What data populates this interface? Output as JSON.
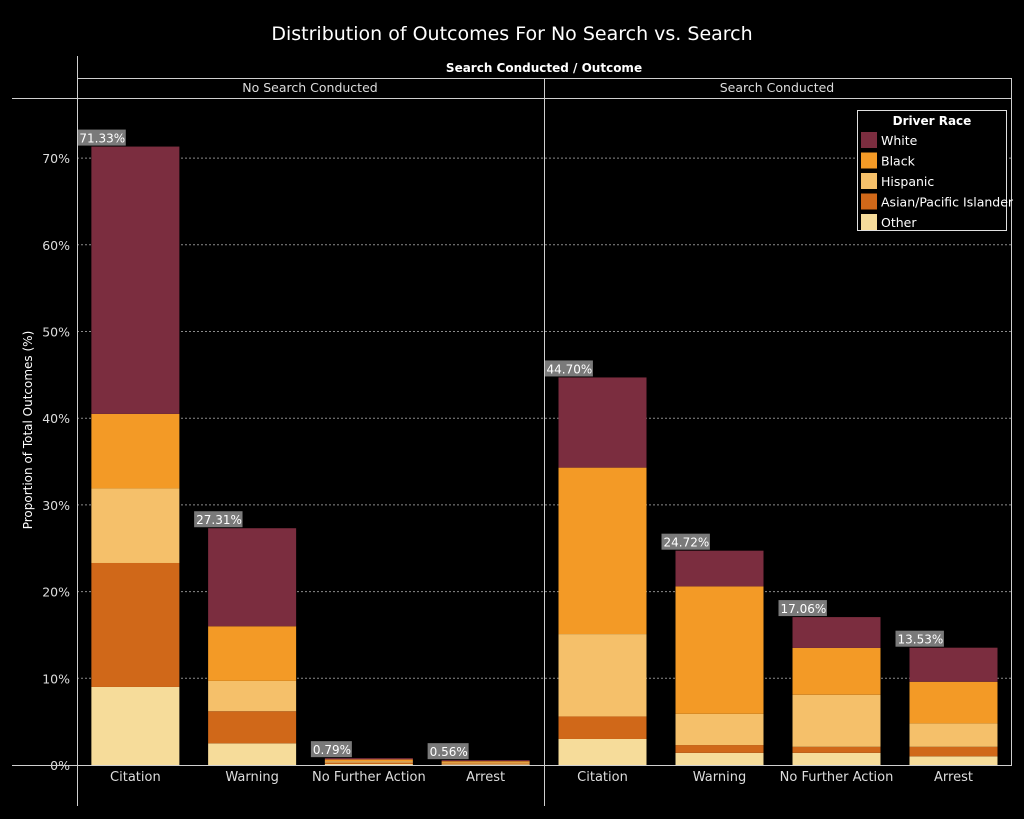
{
  "chart_data": {
    "type": "bar",
    "stacked": true,
    "title": "Distribution of Outcomes For No Search vs. Search",
    "column_header": "Search Conducted  /  Outcome",
    "ylabel": "Proportion of Total  Outcomes  (%)",
    "ylim": [
      0,
      75
    ],
    "yticks": [
      "0%",
      "10%",
      "20%",
      "30%",
      "40%",
      "50%",
      "60%",
      "70%"
    ],
    "ytick_values": [
      0,
      10,
      20,
      30,
      40,
      50,
      60,
      70
    ],
    "grid": true,
    "legend_title": "Driver Race",
    "legend_position": "top-right",
    "series_names": [
      "White",
      "Black",
      "Hispanic",
      "Asian/Pacific Islander",
      "Other"
    ],
    "colors": {
      "White": "#7b2d3f",
      "Black": "#f39a26",
      "Hispanic": "#f5c06a",
      "Asian/Pacific Islander": "#d06819",
      "Other": "#f6dc9a"
    },
    "panels": [
      {
        "name": "No Search Conducted",
        "categories": [
          "Citation",
          "Warning",
          "No Further Action",
          "Arrest"
        ],
        "totals": [
          "71.33%",
          "27.31%",
          "0.79%",
          "0.56%"
        ],
        "series": [
          {
            "name": "Other",
            "values": [
              9.0,
              2.5,
              0.12,
              0.08
            ]
          },
          {
            "name": "Asian/Pacific Islander",
            "values": [
              14.3,
              3.7,
              0.15,
              0.1
            ]
          },
          {
            "name": "Hispanic",
            "values": [
              8.6,
              3.5,
              0.17,
              0.12
            ]
          },
          {
            "name": "Black",
            "values": [
              8.6,
              6.3,
              0.2,
              0.14
            ]
          },
          {
            "name": "White",
            "values": [
              30.83,
              11.31,
              0.15,
              0.12
            ]
          }
        ]
      },
      {
        "name": "Search Conducted",
        "categories": [
          "Citation",
          "Warning",
          "No Further Action",
          "Arrest"
        ],
        "totals": [
          "44.70%",
          "24.72%",
          "17.06%",
          "13.53%"
        ],
        "series": [
          {
            "name": "Other",
            "values": [
              3.0,
              1.4,
              1.4,
              1.0
            ]
          },
          {
            "name": "Asian/Pacific Islander",
            "values": [
              2.6,
              0.9,
              0.7,
              1.1
            ]
          },
          {
            "name": "Hispanic",
            "values": [
              9.5,
              3.6,
              6.0,
              2.7
            ]
          },
          {
            "name": "Black",
            "values": [
              19.2,
              14.7,
              5.4,
              4.8
            ]
          },
          {
            "name": "White",
            "values": [
              10.4,
              4.12,
              3.56,
              3.93
            ]
          }
        ]
      }
    ]
  }
}
